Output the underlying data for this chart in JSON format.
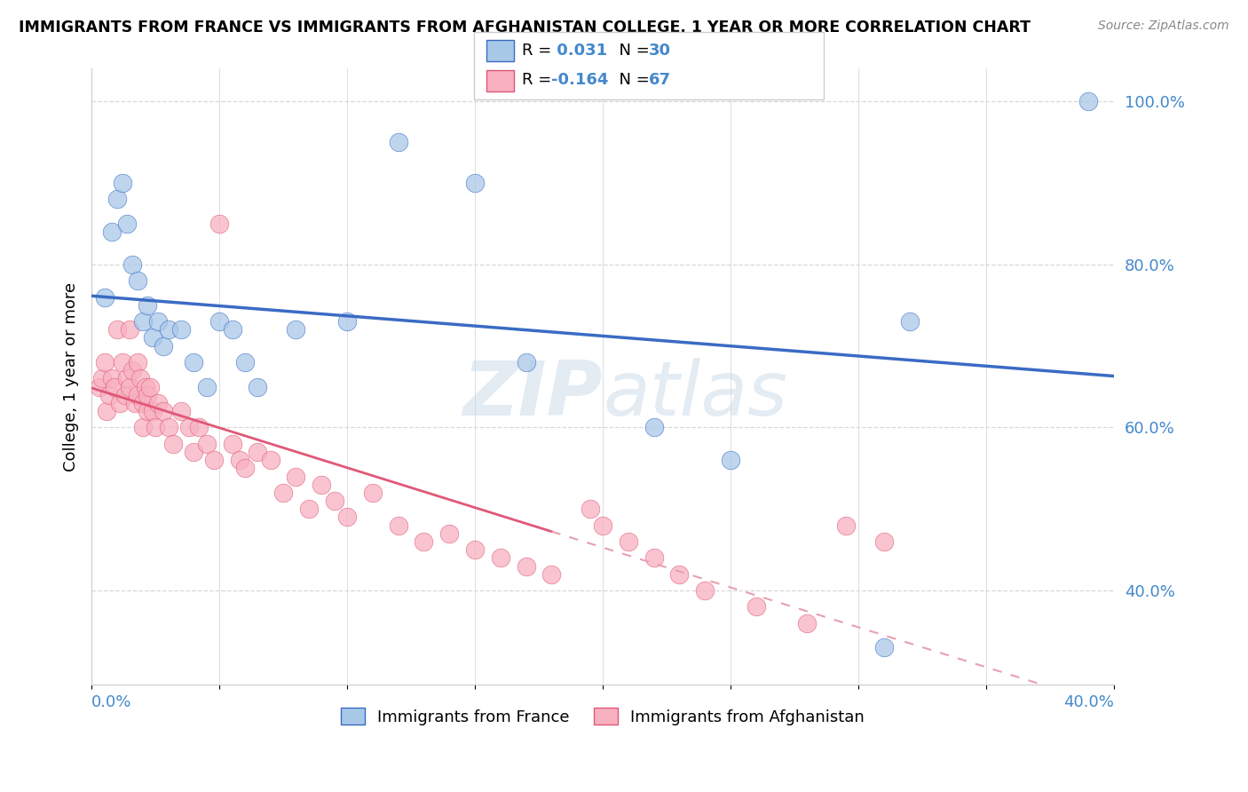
{
  "title": "IMMIGRANTS FROM FRANCE VS IMMIGRANTS FROM AFGHANISTAN COLLEGE, 1 YEAR OR MORE CORRELATION CHART",
  "source": "Source: ZipAtlas.com",
  "legend_france": "Immigrants from France",
  "legend_afghanistan": "Immigrants from Afghanistan",
  "R_france": "0.031",
  "N_france": "30",
  "R_afghanistan": "-0.164",
  "N_afghanistan": "67",
  "xlim": [
    0.0,
    0.4
  ],
  "ylim": [
    0.285,
    1.04
  ],
  "france_color": "#a8c8e8",
  "afghanistan_color": "#f8b0c0",
  "france_line_color": "#3a6bc4",
  "afghanistan_line_color": "#e05878",
  "afghanistan_dash_color": "#e8a0b0",
  "grid_color": "#d8d8d8",
  "watermark_color": "#c8d8e8",
  "label_color": "#4488cc",
  "france_x": [
    0.005,
    0.008,
    0.01,
    0.012,
    0.014,
    0.016,
    0.018,
    0.02,
    0.022,
    0.024,
    0.026,
    0.028,
    0.03,
    0.035,
    0.04,
    0.045,
    0.05,
    0.055,
    0.06,
    0.065,
    0.08,
    0.1,
    0.12,
    0.15,
    0.17,
    0.22,
    0.25,
    0.31,
    0.32,
    0.39
  ],
  "france_y": [
    0.76,
    0.84,
    0.88,
    0.9,
    0.85,
    0.8,
    0.78,
    0.73,
    0.75,
    0.71,
    0.73,
    0.7,
    0.72,
    0.72,
    0.68,
    0.65,
    0.73,
    0.72,
    0.68,
    0.65,
    0.72,
    0.73,
    0.95,
    0.9,
    0.68,
    0.6,
    0.56,
    0.33,
    0.73,
    1.0
  ],
  "afghanistan_x": [
    0.003,
    0.004,
    0.005,
    0.006,
    0.007,
    0.008,
    0.009,
    0.01,
    0.011,
    0.012,
    0.013,
    0.014,
    0.015,
    0.015,
    0.016,
    0.017,
    0.018,
    0.018,
    0.019,
    0.02,
    0.02,
    0.021,
    0.022,
    0.022,
    0.023,
    0.024,
    0.025,
    0.026,
    0.028,
    0.03,
    0.032,
    0.035,
    0.038,
    0.04,
    0.042,
    0.045,
    0.048,
    0.05,
    0.055,
    0.058,
    0.06,
    0.065,
    0.07,
    0.075,
    0.08,
    0.085,
    0.09,
    0.095,
    0.1,
    0.11,
    0.12,
    0.13,
    0.14,
    0.15,
    0.16,
    0.17,
    0.18,
    0.195,
    0.2,
    0.21,
    0.22,
    0.23,
    0.24,
    0.26,
    0.28,
    0.295,
    0.31
  ],
  "afghanistan_y": [
    0.65,
    0.66,
    0.68,
    0.62,
    0.64,
    0.66,
    0.65,
    0.72,
    0.63,
    0.68,
    0.64,
    0.66,
    0.65,
    0.72,
    0.67,
    0.63,
    0.68,
    0.64,
    0.66,
    0.63,
    0.6,
    0.65,
    0.62,
    0.64,
    0.65,
    0.62,
    0.6,
    0.63,
    0.62,
    0.6,
    0.58,
    0.62,
    0.6,
    0.57,
    0.6,
    0.58,
    0.56,
    0.85,
    0.58,
    0.56,
    0.55,
    0.57,
    0.56,
    0.52,
    0.54,
    0.5,
    0.53,
    0.51,
    0.49,
    0.52,
    0.48,
    0.46,
    0.47,
    0.45,
    0.44,
    0.43,
    0.42,
    0.5,
    0.48,
    0.46,
    0.44,
    0.42,
    0.4,
    0.38,
    0.36,
    0.48,
    0.46
  ]
}
